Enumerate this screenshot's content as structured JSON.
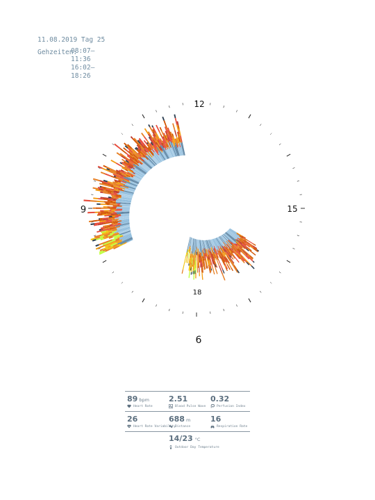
{
  "header": {
    "date_line": "11.08.2019 Tag 25",
    "times_label": "Gehzeiten:",
    "time_1": "08:07–11:36",
    "time_2": "16:02–18:26"
  },
  "chart_data": {
    "type": "radial-spiral-bar",
    "clock_labels": [
      "12",
      "15",
      "18",
      "6",
      "9"
    ],
    "sessions": [
      {
        "start_hour": 8.12,
        "end_hour": 11.6,
        "ring": "outer"
      },
      {
        "start_hour": 16.03,
        "end_hour": 18.43,
        "ring": "inner"
      }
    ],
    "palette": [
      "#a9cde6",
      "#8fbcdc",
      "#5f86a4",
      "#2c3e50",
      "#e67e22",
      "#f39c12",
      "#d35400",
      "#e74c3c",
      "#c0392b",
      "#c0ff3e",
      "#f1c40f",
      "#5cc6b8"
    ]
  },
  "stats": {
    "heart_rate": {
      "value": "89",
      "unit": "bpm",
      "label": "Heart Rate",
      "icon": "heart-icon"
    },
    "blood_pulse_wave": {
      "value": "2.51",
      "unit": "",
      "label": "Blood Pulse Wave",
      "icon": "pulse-wave-icon"
    },
    "perfusion_index": {
      "value": "0.32",
      "unit": "",
      "label": "Perfusion Index",
      "icon": "perfusion-icon"
    },
    "heart_rate_variability": {
      "value": "26",
      "unit": "",
      "label": "Heart Rate Variability",
      "icon": "hrv-heart-icon"
    },
    "distance": {
      "value": "688",
      "unit": "m",
      "label": "Distance",
      "icon": "footsteps-icon"
    },
    "respiration_rate": {
      "value": "16",
      "unit": "",
      "label": "Respiration Rate",
      "icon": "lungs-icon"
    },
    "temperature": {
      "value": "14/23",
      "unit": "°C",
      "label": "Outdoor Day Temperature",
      "icon": "thermometer-icon"
    }
  }
}
